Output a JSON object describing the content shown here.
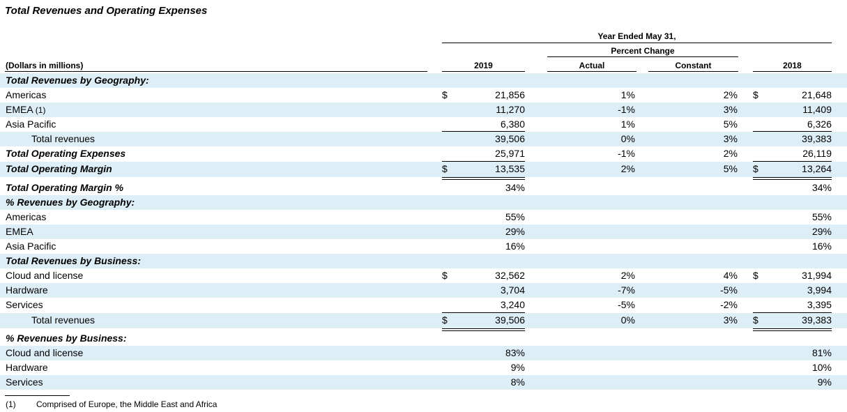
{
  "title": "Total Revenues and Operating Expenses",
  "header": {
    "year_ended": "Year Ended May 31,",
    "percent_change": "Percent Change",
    "dollars_note": "(Dollars in millions)",
    "col_2019": "2019",
    "col_actual": "Actual",
    "col_constant": "Constant",
    "col_2018": "2018"
  },
  "rows": [
    {
      "label": "Total Revenues by Geography:",
      "y2019": "",
      "actual": "",
      "constant": "",
      "y2018": ""
    },
    {
      "label": "Americas",
      "d2019": "$",
      "y2019": "21,856",
      "actual": "1%",
      "constant": "2%",
      "d2018": "$",
      "y2018": "21,648"
    },
    {
      "label": "EMEA",
      "note": "(1)",
      "y2019": "11,270",
      "actual": "-1%",
      "constant": "3%",
      "y2018": "11,409"
    },
    {
      "label": "Asia Pacific",
      "y2019": "6,380",
      "actual": "1%",
      "constant": "5%",
      "y2018": "6,326"
    },
    {
      "label": "Total revenues",
      "y2019": "39,506",
      "actual": "0%",
      "constant": "3%",
      "y2018": "39,383"
    },
    {
      "label": "Total Operating Expenses",
      "y2019": "25,971",
      "actual": "-1%",
      "constant": "2%",
      "y2018": "26,119"
    },
    {
      "label": "Total Operating Margin",
      "d2019": "$",
      "y2019": "13,535",
      "actual": "2%",
      "constant": "5%",
      "d2018": "$",
      "y2018": "13,264"
    },
    {
      "label": "Total Operating Margin %",
      "y2019": "34%",
      "y2018": "34%"
    },
    {
      "label": "% Revenues by Geography:"
    },
    {
      "label": "Americas",
      "y2019": "55%",
      "y2018": "55%"
    },
    {
      "label": "EMEA",
      "y2019": "29%",
      "y2018": "29%"
    },
    {
      "label": "Asia Pacific",
      "y2019": "16%",
      "y2018": "16%"
    },
    {
      "label": "Total Revenues by Business:"
    },
    {
      "label": "Cloud and license",
      "d2019": "$",
      "y2019": "32,562",
      "actual": "2%",
      "constant": "4%",
      "d2018": "$",
      "y2018": "31,994"
    },
    {
      "label": "Hardware",
      "y2019": "3,704",
      "actual": "-7%",
      "constant": "-5%",
      "y2018": "3,994"
    },
    {
      "label": "Services",
      "y2019": "3,240",
      "actual": "-5%",
      "constant": "-2%",
      "y2018": "3,395"
    },
    {
      "label": "Total revenues",
      "d2019": "$",
      "y2019": "39,506",
      "actual": "0%",
      "constant": "3%",
      "d2018": "$",
      "y2018": "39,383"
    },
    {
      "label": "% Revenues by Business:"
    },
    {
      "label": "Cloud and license",
      "y2019": "83%",
      "y2018": "81%"
    },
    {
      "label": "Hardware",
      "y2019": "9%",
      "y2018": "10%"
    },
    {
      "label": "Services",
      "y2019": "8%",
      "y2018": "9%"
    }
  ],
  "footnote": {
    "mark": "(1)",
    "text": "Comprised of Europe, the Middle East and Africa"
  }
}
